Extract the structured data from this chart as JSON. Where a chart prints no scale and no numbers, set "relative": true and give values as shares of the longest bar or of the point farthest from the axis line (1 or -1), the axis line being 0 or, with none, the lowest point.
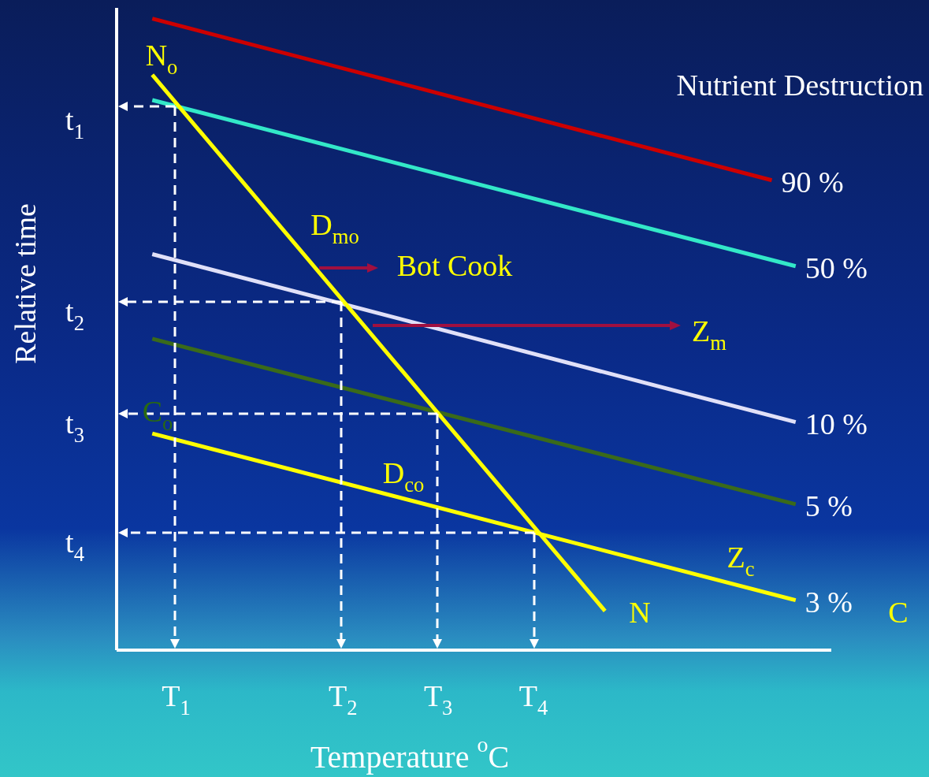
{
  "chart_data": {
    "type": "line",
    "relative": true,
    "xlabel": "Temperature $^{o}$C",
    "ylabel": "Relative time",
    "legend_title": "Nutrient Destruction",
    "categories": [
      null,
      null,
      "T$_{1}$",
      null,
      null,
      null,
      null,
      null,
      null,
      "T$_{2}$",
      null,
      null,
      null,
      "T$_{3}$",
      null,
      null,
      null,
      "T$_{4}$",
      null,
      null,
      null,
      null,
      null,
      null,
      null,
      null,
      null,
      null,
      null,
      null
    ],
    "series": [
      {
        "name": "90 %",
        "color": "#cc0000",
        "values": [
          null,
          1,
          null,
          null,
          null,
          null,
          null,
          null,
          null,
          null,
          null,
          null,
          null,
          null,
          null,
          null,
          null,
          null,
          null,
          null,
          null,
          null,
          null,
          null,
          null,
          null,
          null,
          0.744,
          null,
          null
        ]
      },
      {
        "name": "50 %",
        "color": "#33e8c8",
        "values": [
          null,
          0.871,
          null,
          null,
          null,
          null,
          null,
          null,
          null,
          null,
          null,
          null,
          null,
          null,
          null,
          null,
          null,
          null,
          null,
          null,
          null,
          null,
          null,
          null,
          null,
          null,
          null,
          null,
          0.608,
          null
        ]
      },
      {
        "name": "10 %",
        "color": "#e0e0f8",
        "values": [
          null,
          0.627,
          null,
          null,
          null,
          null,
          null,
          null,
          null,
          null,
          null,
          null,
          null,
          null,
          null,
          null,
          null,
          null,
          null,
          null,
          null,
          null,
          null,
          null,
          null,
          null,
          null,
          null,
          0.361,
          null
        ]
      },
      {
        "name": "5 %",
        "color": "#3a6a1a",
        "values": [
          null,
          0.493,
          null,
          null,
          null,
          null,
          null,
          null,
          null,
          null,
          null,
          null,
          null,
          null,
          null,
          null,
          null,
          null,
          null,
          null,
          null,
          null,
          null,
          null,
          null,
          null,
          null,
          null,
          0.231,
          null
        ]
      },
      {
        "name": "3 %",
        "color": "#ffff00",
        "values": [
          null,
          0.343,
          null,
          null,
          null,
          null,
          null,
          null,
          null,
          null,
          null,
          null,
          null,
          null,
          null,
          null,
          null,
          null,
          null,
          null,
          null,
          null,
          null,
          null,
          null,
          null,
          null,
          null,
          0.079,
          null
        ]
      },
      {
        "color": "#ffff00",
        "values": [
          null,
          0.911,
          null,
          null,
          null,
          null,
          null,
          null,
          null,
          null,
          null,
          null,
          null,
          null,
          null,
          null,
          null,
          null,
          null,
          null,
          0.062,
          null,
          null,
          null,
          null,
          null,
          null,
          null,
          null,
          null
        ]
      }
    ],
    "annotations": [
      "t$_{1}$",
      "t$_{2}$",
      "t$_{3}$",
      "t$_{4}$",
      "N$_{o}$",
      "D$_{mo}$",
      "Bot Cook",
      "Z$_{m}$",
      "C$_{o}$",
      "D$_{co}$",
      "Z$_{c}$",
      "N",
      "C"
    ]
  }
}
